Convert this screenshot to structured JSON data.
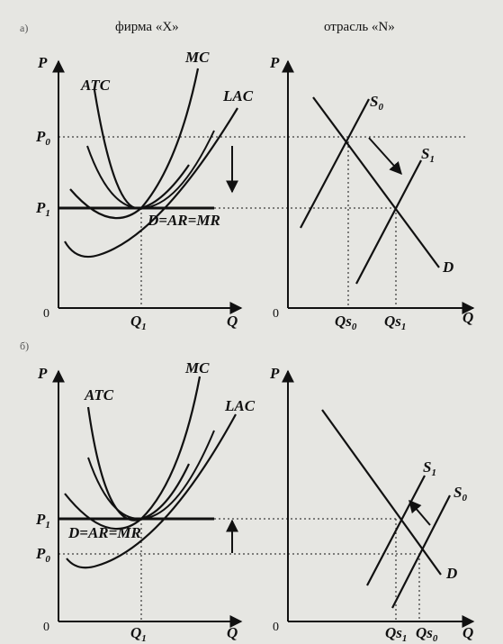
{
  "colors": {
    "background": "#e6e6e2",
    "ink": "#111111"
  },
  "headings": {
    "firm": "фирма «X»",
    "industry": "отрасль «N»"
  },
  "panel_a": {
    "marker": "а)",
    "firm": {
      "axis_y": "P",
      "axis_x": "Q",
      "origin": "0",
      "tick_p0": "P",
      "tick_p0_sub": "0",
      "tick_p1": "P",
      "tick_p1_sub": "1",
      "tick_q1": "Q",
      "tick_q1_sub": "1",
      "curve_atc": "ATC",
      "curve_mc": "MC",
      "curve_lac": "LAC",
      "demand": "D=AR=MR"
    },
    "industry": {
      "axis_y": "P",
      "axis_x": "Q",
      "origin": "0",
      "supply0": "S",
      "supply0_sub": "0",
      "supply1": "S",
      "supply1_sub": "1",
      "demand": "D",
      "tick_qs0": "Qs",
      "tick_qs0_sub": "0",
      "tick_qs1": "Qs",
      "tick_qs1_sub": "1"
    }
  },
  "panel_b": {
    "marker": "б)",
    "firm": {
      "axis_y": "P",
      "axis_x": "Q",
      "origin": "0",
      "tick_p1": "P",
      "tick_p1_sub": "1",
      "tick_p0": "P",
      "tick_p0_sub": "0",
      "tick_q1": "Q",
      "tick_q1_sub": "1",
      "curve_atc": "ATC",
      "curve_mc": "MC",
      "curve_lac": "LAC",
      "demand": "D=AR=MR"
    },
    "industry": {
      "axis_y": "P",
      "axis_x": "Q",
      "origin": "0",
      "supply1": "S",
      "supply1_sub": "1",
      "supply0": "S",
      "supply0_sub": "0",
      "demand": "D",
      "tick_qs1": "Qs",
      "tick_qs1_sub": "1",
      "tick_qs0": "Qs",
      "tick_qs0_sub": "0"
    }
  }
}
